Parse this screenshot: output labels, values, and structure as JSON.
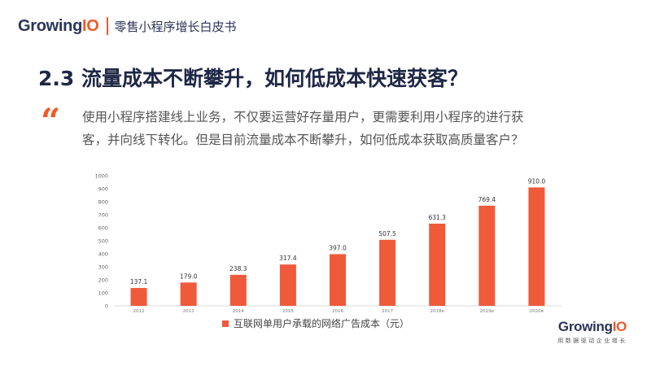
{
  "header": {
    "logo_text": "Growing",
    "logo_accent": "IO",
    "title": "零售小程序增长白皮书"
  },
  "section": {
    "title": "2.3 流量成本不断攀升，如何低成本快速获客？"
  },
  "quote": {
    "mark": "“",
    "line1": "使用小程序搭建线上业务，不仅要运营好存量用户，更需要利用小程序的进行获",
    "line2": "客，并向线下转化。但是目前流量成本不断攀升，如何低成本获取高质量客户？"
  },
  "footer": {
    "logo_text": "Growing",
    "logo_accent": "IO",
    "slogan": "用数据驱动企业增长"
  },
  "colors": {
    "accent": "#f05a28",
    "bar": "#ef5a3a",
    "navy": "#2c3558"
  },
  "chart_data": {
    "type": "bar",
    "categories": [
      "2012",
      "2013",
      "2014",
      "2015",
      "2016",
      "2017",
      "2018e",
      "2019e",
      "2020e"
    ],
    "series": [
      {
        "name": "互联网单用户承载的网络广告成本（元）",
        "values": [
          137.1,
          179.0,
          238.3,
          317.4,
          397.0,
          507.5,
          631.3,
          769.4,
          910.0
        ],
        "labels": [
          "137.1",
          "179.0",
          "238.3",
          "317.4",
          "397.0",
          "507.5",
          "631.3",
          "769.4",
          "910.0"
        ]
      }
    ],
    "yticks": [
      "0",
      "100",
      "200",
      "300",
      "400",
      "500",
      "600",
      "700",
      "800",
      "900",
      "1000"
    ],
    "ylim": [
      0,
      1000
    ],
    "grid": false,
    "legend_position": "bottom"
  }
}
